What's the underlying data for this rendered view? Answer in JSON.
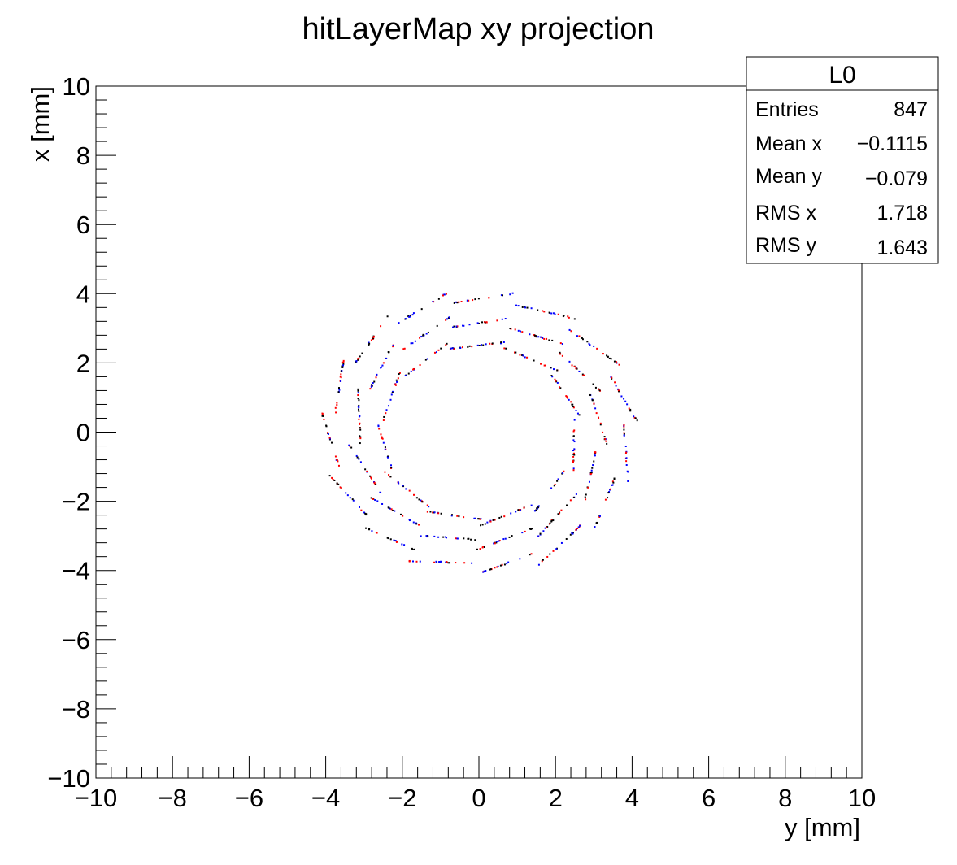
{
  "chart_data": {
    "type": "scatter",
    "title": "hitLayerMap xy projection",
    "xlabel": "y [mm]",
    "ylabel": "x [mm]",
    "xlim": [
      -10,
      10
    ],
    "ylim": [
      -10,
      10
    ],
    "grid": false,
    "x_tick_labels": [
      "−10",
      "−8",
      "−6",
      "−4",
      "−2",
      "0",
      "2",
      "4",
      "6",
      "8",
      "10"
    ],
    "y_tick_labels": [
      "10",
      "8",
      "6",
      "4",
      "2",
      "0",
      "−2",
      "−4",
      "−6",
      "−8",
      "−10"
    ],
    "marker_colors": [
      "#0000ff",
      "#ff0000",
      "#000000"
    ],
    "stats_box": {
      "title": "L0",
      "rows": [
        {
          "label": "Entries",
          "value": "847"
        },
        {
          "label": "Mean x",
          "value": "−0.1115"
        },
        {
          "label": "Mean y",
          "value": "−0.079"
        },
        {
          "label": "RMS x",
          "value": "1.718"
        },
        {
          "label": "RMS y",
          "value": "1.643"
        }
      ]
    },
    "rings": [
      {
        "segments": 11,
        "r_outer": 2.72,
        "length": 1.55,
        "phase_deg": 8
      },
      {
        "segments": 13,
        "r_outer": 3.4,
        "length": 1.62,
        "phase_deg": 20
      },
      {
        "segments": 15,
        "r_outer": 4.15,
        "length": 1.68,
        "phase_deg": 4
      }
    ],
    "series": [
      {
        "name": "",
        "color": "#0000ff",
        "n_points": 320
      },
      {
        "name": "",
        "color": "#ff0000",
        "n_points": 330
      },
      {
        "name": "",
        "color": "#000000",
        "n_points": 197
      }
    ]
  }
}
